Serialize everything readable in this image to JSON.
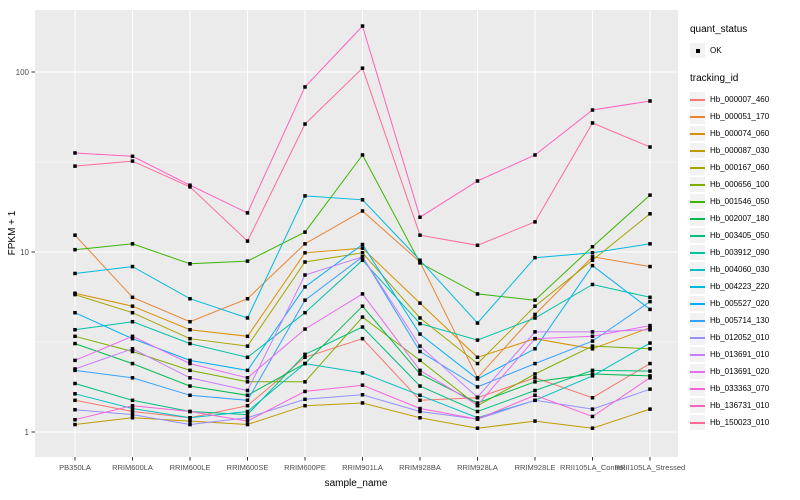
{
  "axes": {
    "x_title": "sample_name",
    "y_title": "FPKM + 1"
  },
  "legend": {
    "quant_status": {
      "title": "quant_status",
      "items": [
        {
          "label": "OK",
          "glyph": "filled-square-point"
        }
      ]
    },
    "tracking": {
      "title": "tracking_id"
    }
  },
  "colors": {
    "panel_bg": "#EBEBEB",
    "grid": "#FFFFFF",
    "tick_label": "#4D4D4D",
    "tick_mark": "#333333",
    "point": "#000000",
    "legend_key_bg": "#F2F2F2"
  },
  "chart_data": {
    "type": "line",
    "title": "",
    "xlabel": "sample_name",
    "ylabel": "FPKM + 1",
    "x_categories": [
      "PB350LA",
      "RRIM600LA",
      "RRIM600LE",
      "RRIM600SE",
      "RRIM600PE",
      "RRIM901LA",
      "RRIM928BA",
      "RRIM928LA",
      "RRIM928LE",
      "RRII105LA_Control",
      "RRII105LA_Stressed"
    ],
    "y_scale": "log10",
    "y_ticks": [
      1,
      10,
      100
    ],
    "y_minor_ticks": [
      3.162,
      31.62
    ],
    "ylim": [
      1,
      220
    ],
    "grid": true,
    "legend_position": "right",
    "point_shape": "filled-square",
    "series": [
      {
        "tracking_id": "Hb_000007_460",
        "color": "#F8766D",
        "quant_status": "OK",
        "values": [
          1.5,
          1.3,
          1.2,
          1.4,
          2.6,
          3.3,
          1.5,
          1.55,
          2.0,
          1.55,
          2.4
        ]
      },
      {
        "tracking_id": "Hb_000051_170",
        "color": "#EA8331",
        "quant_status": "OK",
        "values": [
          12.4,
          5.6,
          4.1,
          5.5,
          11.1,
          16.9,
          8.8,
          2.0,
          4.5,
          9.4,
          8.3
        ]
      },
      {
        "tracking_id": "Hb_000074_060",
        "color": "#D89000",
        "quant_status": "OK",
        "values": [
          5.9,
          5.0,
          3.7,
          3.4,
          9.9,
          10.5,
          5.2,
          2.6,
          3.3,
          2.9,
          3.8
        ]
      },
      {
        "tracking_id": "Hb_000087_030",
        "color": "#C09B00",
        "quant_status": "OK",
        "values": [
          1.1,
          1.2,
          1.15,
          1.1,
          1.4,
          1.45,
          1.2,
          1.05,
          1.15,
          1.05,
          1.34
        ]
      },
      {
        "tracking_id": "Hb_000167_060",
        "color": "#A3A500",
        "quant_status": "OK",
        "values": [
          5.8,
          4.6,
          3.3,
          3.0,
          8.8,
          9.9,
          4.3,
          2.4,
          5.0,
          9.0,
          16.3
        ]
      },
      {
        "tracking_id": "Hb_000656_100",
        "color": "#7CAE00",
        "quant_status": "OK",
        "values": [
          3.4,
          2.8,
          2.2,
          1.9,
          1.9,
          4.35,
          2.5,
          1.4,
          2.1,
          3.0,
          2.9
        ]
      },
      {
        "tracking_id": "Hb_001546_050",
        "color": "#39B600",
        "quant_status": "OK",
        "values": [
          10.3,
          11.1,
          8.6,
          8.9,
          12.9,
          34.6,
          8.7,
          5.85,
          5.4,
          10.7,
          20.7
        ]
      },
      {
        "tracking_id": "Hb_002007_180",
        "color": "#00BB4E",
        "quant_status": "OK",
        "values": [
          3.1,
          2.4,
          1.8,
          1.6,
          2.4,
          5.0,
          2.1,
          1.45,
          1.9,
          2.1,
          2.05
        ]
      },
      {
        "tracking_id": "Hb_003405_050",
        "color": "#00BF7D",
        "quant_status": "OK",
        "values": [
          1.86,
          1.5,
          1.3,
          1.25,
          2.7,
          3.83,
          1.8,
          1.3,
          1.7,
          2.2,
          2.18
        ]
      },
      {
        "tracking_id": "Hb_003912_090",
        "color": "#00C1A3",
        "quant_status": "OK",
        "values": [
          3.7,
          4.1,
          3.1,
          2.6,
          4.6,
          9.0,
          4.0,
          3.24,
          4.3,
          6.6,
          5.6
        ]
      },
      {
        "tracking_id": "Hb_004060_030",
        "color": "#00BFC4",
        "quant_status": "OK",
        "values": [
          1.63,
          1.35,
          1.2,
          1.3,
          2.4,
          2.13,
          1.6,
          1.2,
          1.5,
          2.05,
          3.12
        ]
      },
      {
        "tracking_id": "Hb_004223_220",
        "color": "#00BADE",
        "quant_status": "OK",
        "values": [
          7.6,
          8.3,
          5.5,
          4.3,
          20.5,
          19.5,
          9.0,
          4.03,
          9.3,
          9.9,
          11.1
        ]
      },
      {
        "tracking_id": "Hb_005527_020",
        "color": "#00B0F6",
        "quant_status": "OK",
        "values": [
          4.6,
          3.3,
          2.5,
          2.2,
          6.4,
          11.0,
          3.5,
          1.97,
          2.9,
          8.4,
          4.8
        ]
      },
      {
        "tracking_id": "Hb_005714_130",
        "color": "#35A2FF",
        "quant_status": "OK",
        "values": [
          2.2,
          2.0,
          1.6,
          1.5,
          5.4,
          9.4,
          2.8,
          1.78,
          2.4,
          3.2,
          5.3
        ]
      },
      {
        "tracking_id": "Hb_012052_010",
        "color": "#9590FF",
        "quant_status": "OK",
        "values": [
          1.33,
          1.25,
          1.1,
          1.2,
          1.52,
          1.61,
          1.3,
          1.18,
          1.5,
          1.34,
          1.73
        ]
      },
      {
        "tracking_id": "Hb_013691_010",
        "color": "#C77CFF",
        "quant_status": "OK",
        "values": [
          2.24,
          2.9,
          2.0,
          1.7,
          7.45,
          9.4,
          3.0,
          1.56,
          3.6,
          3.6,
          3.7
        ]
      },
      {
        "tracking_id": "Hb_013691_020",
        "color": "#E76BF3",
        "quant_status": "OK",
        "values": [
          2.5,
          3.4,
          2.4,
          2.0,
          3.73,
          5.85,
          2.2,
          1.41,
          3.3,
          3.4,
          3.9
        ]
      },
      {
        "tracking_id": "Hb_033363_070",
        "color": "#FA62DB",
        "quant_status": "OK",
        "values": [
          1.17,
          1.4,
          1.3,
          1.15,
          1.68,
          1.82,
          1.35,
          1.18,
          1.6,
          1.22,
          2.0
        ]
      },
      {
        "tracking_id": "Hb_136731_010",
        "color": "#FF62BC",
        "quant_status": "OK",
        "values": [
          35.5,
          34.0,
          23.5,
          16.5,
          82.6,
          180.0,
          15.6,
          24.8,
          34.6,
          61.5,
          69.0
        ]
      },
      {
        "tracking_id": "Hb_150023_010",
        "color": "#FF6A98",
        "quant_status": "OK",
        "values": [
          30.0,
          32.0,
          23.0,
          11.5,
          51.4,
          105.0,
          12.4,
          10.9,
          14.7,
          52.1,
          38.3
        ]
      }
    ]
  }
}
